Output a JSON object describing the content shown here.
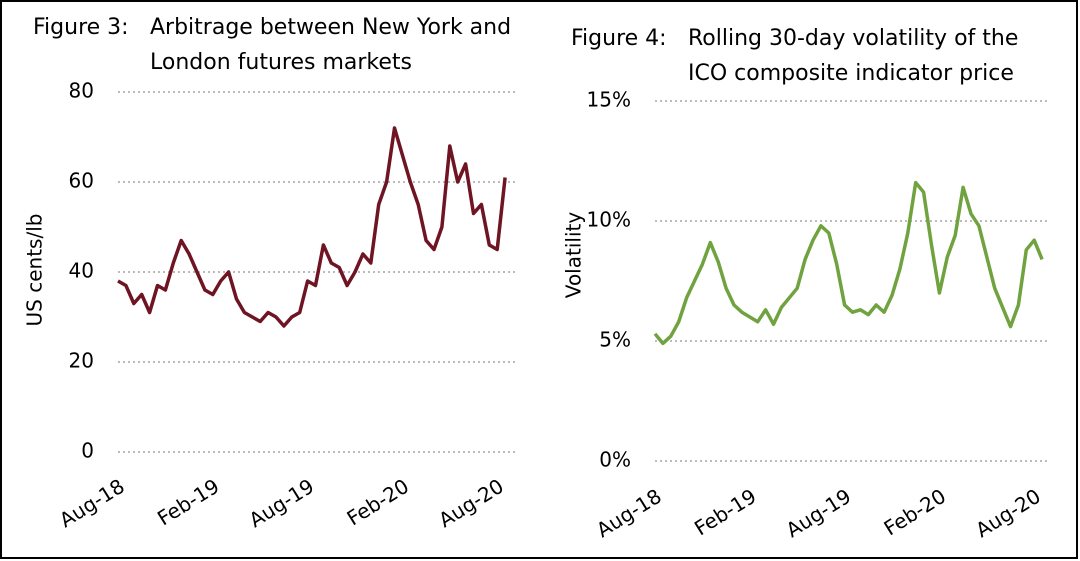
{
  "chart_data": [
    {
      "type": "line",
      "figure": "Figure 3:",
      "title": [
        "Arbitrage between New York and",
        "London futures markets"
      ],
      "y_label": "US cents/lb",
      "categories": [
        "Aug-18",
        null,
        null,
        null,
        null,
        null,
        null,
        null,
        null,
        null,
        null,
        null,
        "Feb-19",
        null,
        null,
        null,
        null,
        null,
        null,
        null,
        null,
        null,
        null,
        null,
        "Aug-19",
        null,
        null,
        null,
        null,
        null,
        null,
        null,
        null,
        null,
        null,
        null,
        "Feb-20",
        null,
        null,
        null,
        null,
        null,
        null,
        null,
        null,
        null,
        null,
        null,
        "Aug-20",
        null
      ],
      "series": [
        {
          "color": "#6e1423",
          "values": [
            38,
            37,
            33,
            35,
            31,
            37,
            36,
            42,
            47,
            44,
            40,
            36,
            35,
            38,
            40,
            34,
            31,
            30,
            29,
            31,
            30,
            28,
            30,
            31,
            38,
            37,
            46,
            42,
            41,
            37,
            40,
            44,
            42,
            55,
            60,
            72,
            66,
            60,
            55,
            47,
            45,
            50,
            68,
            60,
            64,
            53,
            55,
            46,
            45,
            61
          ]
        }
      ],
      "ylim": [
        0,
        80
      ],
      "yticks": [
        0,
        20,
        40,
        60,
        80
      ],
      "grid": true
    },
    {
      "type": "line",
      "figure": "Figure 4:",
      "title": [
        "Rolling 30-day volatility of the",
        "ICO  composite indicator price"
      ],
      "y_label": "Volatility",
      "categories": [
        "Aug-18",
        null,
        null,
        null,
        null,
        null,
        null,
        null,
        null,
        null,
        null,
        null,
        "Feb-19",
        null,
        null,
        null,
        null,
        null,
        null,
        null,
        null,
        null,
        null,
        null,
        "Aug-19",
        null,
        null,
        null,
        null,
        null,
        null,
        null,
        null,
        null,
        null,
        null,
        "Feb-20",
        null,
        null,
        null,
        null,
        null,
        null,
        null,
        null,
        null,
        null,
        null,
        "Aug-20",
        null
      ],
      "series": [
        {
          "color": "#70a33f",
          "values": [
            5.3,
            4.9,
            5.2,
            5.8,
            6.8,
            7.5,
            8.2,
            9.1,
            8.3,
            7.2,
            6.5,
            6.2,
            6.0,
            5.8,
            6.3,
            5.7,
            6.4,
            6.8,
            7.2,
            8.4,
            9.2,
            9.8,
            9.5,
            8.2,
            6.5,
            6.2,
            6.3,
            6.1,
            6.5,
            6.2,
            6.9,
            8.0,
            9.5,
            11.6,
            11.2,
            9.0,
            7.0,
            8.5,
            9.4,
            11.4,
            10.3,
            9.8,
            8.5,
            7.2,
            6.4,
            5.6,
            6.5,
            8.8,
            9.2,
            8.4
          ]
        }
      ],
      "ylim": [
        0,
        15
      ],
      "yticks": [
        {
          "value": 0,
          "label": "0%"
        },
        {
          "value": 5,
          "label": "5%"
        },
        {
          "value": 10,
          "label": "10%"
        },
        {
          "value": 15,
          "label": "15%"
        }
      ],
      "grid": true
    }
  ]
}
